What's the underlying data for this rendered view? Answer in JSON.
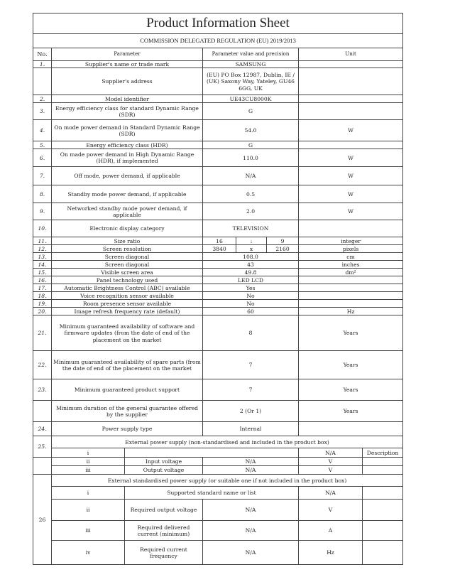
{
  "title": "Product Information Sheet",
  "regulation": "COMMISSION DELEGATED REGULATION (EU) 2019/2013",
  "headers": {
    "no": "No.",
    "parameter": "Parameter",
    "value": "Parameter value and precision",
    "unit": "Unit"
  },
  "rows": [
    {
      "no": "1.",
      "param": "Supplier's name or trade mark",
      "value": "SAMSUNG",
      "unit": ""
    },
    {
      "no": "",
      "param": "Supplier's address",
      "value": "(EU) PO Box 12987, Dublin, IE / (UK) Saxony Way, Yateley, GU46 6GG, UK",
      "unit": ""
    },
    {
      "no": "2.",
      "param": "Model identifier",
      "value": "UE43CU8000K",
      "unit": ""
    },
    {
      "no": "3.",
      "param": "Energy efficiency class for standard Dynamic Range (SDR)",
      "value": "G",
      "unit": ""
    },
    {
      "no": "4.",
      "param": "On mode power demand in Standard Dynamic Range (SDR)",
      "value": "54.0",
      "unit": "W"
    },
    {
      "no": "5.",
      "param": "Energy efficiency class (HDR)",
      "value": "G",
      "unit": ""
    },
    {
      "no": "6.",
      "param": "On made power demand in High Dynamic Range (HDR), if implemented",
      "value": "110.0",
      "unit": "W"
    },
    {
      "no": "7.",
      "param": "Off mode, power demand, if applicable",
      "value": "N/A",
      "unit": "W"
    },
    {
      "no": "8.",
      "param": "Standby mode power demand, if applicable",
      "value": "0.5",
      "unit": "W"
    },
    {
      "no": "9.",
      "param": "Networked standby mode power demand, if applicable",
      "value": "2.0",
      "unit": "W"
    },
    {
      "no": "10.",
      "param": "Electronic display category",
      "value": "TELEVISION",
      "unit": ""
    },
    {
      "no": "11.",
      "param": "Size ratio",
      "parts": [
        "16",
        ":",
        "9"
      ],
      "unit": "integer"
    },
    {
      "no": "12.",
      "param": "Screen resolution",
      "parts": [
        "3840",
        "x",
        "2160"
      ],
      "unit": "pixels"
    },
    {
      "no": "13.",
      "param": "Screen diagonal",
      "value": "108.0",
      "unit": "cm"
    },
    {
      "no": "14.",
      "param": "Screen diagonal",
      "value": "43",
      "unit": "inches"
    },
    {
      "no": "15.",
      "param": "Visible screen area",
      "value": "49.8",
      "unit": "dm²"
    },
    {
      "no": "16.",
      "param": "Panel technology used",
      "value": "LED LCD",
      "unit": ""
    },
    {
      "no": "17.",
      "param": "Automatic Brightness Control (ABC) available",
      "value": "Yes",
      "unit": ""
    },
    {
      "no": "18.",
      "param": "Voice recognition sensor available",
      "value": "No",
      "unit": ""
    },
    {
      "no": "19.",
      "param": "Room presence sensor available",
      "value": "No",
      "unit": ""
    },
    {
      "no": "20.",
      "param": "Image refresh frequency rate (default)",
      "value": "60",
      "unit": "Hz"
    },
    {
      "no": "21.",
      "param": "Minimum guaranteed availability of software and firmware updates (from the date of end of the placement on the market",
      "value": "8",
      "unit": "Years"
    },
    {
      "no": "22.",
      "param": "Minimum guaranteed availability of spare parts (from the date of end of the placement on the market",
      "value": "7",
      "unit": "Years"
    },
    {
      "no": "23.",
      "param": "Minimum guaranteed product support",
      "value": "7",
      "unit": "Years"
    },
    {
      "no": "",
      "param": "Minimum duration of the general guarantee offered by the supplier",
      "value": "2 (Or 1)",
      "unit": "Years"
    },
    {
      "no": "24.",
      "param": "Power supply type",
      "value": "Internal",
      "unit": ""
    }
  ],
  "eps25": {
    "no": "25.",
    "title": "External power supply (non-standardised and included in the product box)",
    "row_i": {
      "idx": "i",
      "value": "N/A",
      "desc": "Description"
    },
    "rows": [
      {
        "idx": "ii",
        "param": "Input voltage",
        "value": "N/A",
        "unit": "V"
      },
      {
        "idx": "iii",
        "param": "Output voltage",
        "value": "N/A",
        "unit": "V"
      }
    ]
  },
  "eps26": {
    "no": "26",
    "title": "External standardised power supply (or suitable one if not included in the product box)",
    "row_i": {
      "idx": "i",
      "param": "Supported standard name or list",
      "value": "N/A"
    },
    "rows": [
      {
        "idx": "ii",
        "param": "Required output voltage",
        "value": "N/A",
        "unit": "V"
      },
      {
        "idx": "iii",
        "param": "Required delivered current (minimum)",
        "value": "N/A",
        "unit": "A"
      },
      {
        "idx": "iv",
        "param": "Required current frequency",
        "value": "N/A",
        "unit": "Hz"
      }
    ]
  }
}
